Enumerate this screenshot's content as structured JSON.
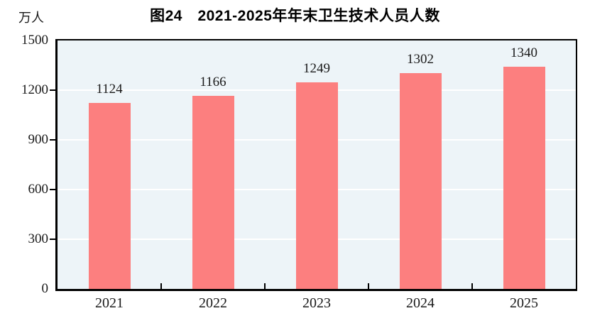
{
  "figure": {
    "title": "图24　2021-2025年年末卫生技术人员人数",
    "unit_label": "万人"
  },
  "chart_data": {
    "type": "bar",
    "title": "图24　2021-2025年年末卫生技术人员人数",
    "categories": [
      "2021",
      "2022",
      "2023",
      "2024",
      "2025"
    ],
    "values": [
      1124,
      1166,
      1249,
      1302,
      1340
    ],
    "xlabel": "",
    "ylabel": "万人",
    "ylim": [
      0,
      1500
    ],
    "yticks": [
      0,
      300,
      600,
      900,
      1200,
      1500
    ],
    "grid": true,
    "legend": "none",
    "data_labels": true,
    "colors": {
      "bar": "#fc7f7f",
      "plot_background": "#edf4f8",
      "gridline": "#ffffff",
      "axis": "#000000",
      "text": "#1a1a1a"
    }
  }
}
